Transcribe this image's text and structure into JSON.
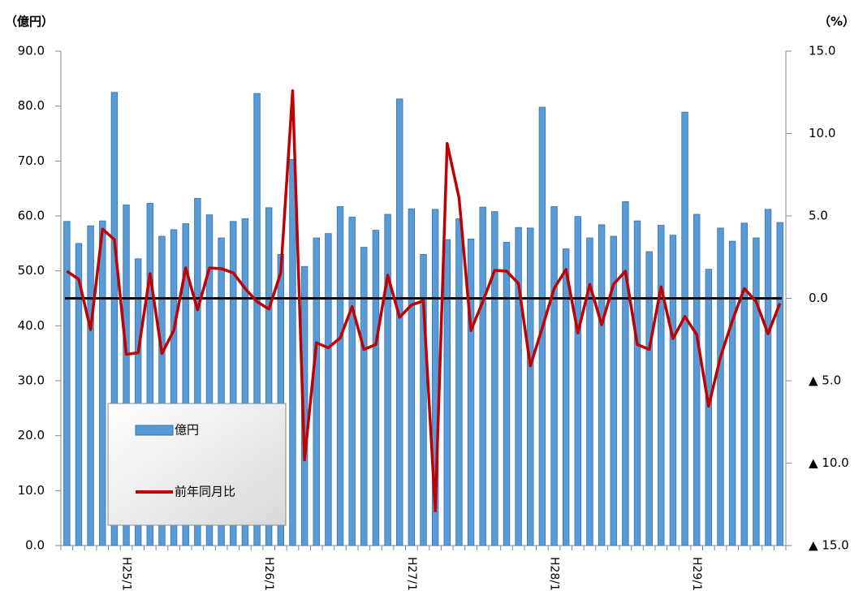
{
  "chart_data": {
    "type": "bar+line",
    "y_label": "（億円）",
    "y2_label": "（%）",
    "categories": [
      null,
      null,
      null,
      null,
      null,
      "H25/1",
      null,
      null,
      null,
      null,
      null,
      null,
      null,
      null,
      null,
      null,
      null,
      "H26/1",
      null,
      null,
      null,
      null,
      null,
      null,
      null,
      null,
      null,
      null,
      null,
      "H27/1",
      null,
      null,
      null,
      null,
      null,
      null,
      null,
      null,
      null,
      null,
      null,
      "H28/1",
      null,
      null,
      null,
      null,
      null,
      null,
      null,
      null,
      null,
      null,
      null,
      "H29/1",
      null,
      null,
      null,
      null,
      null,
      null,
      null
    ],
    "series": [
      {
        "name": "億円",
        "type": "bar",
        "color": "#5b9bd5",
        "values": [
          59,
          55,
          58.2,
          59.1,
          82.5,
          62,
          52.2,
          62.3,
          56.3,
          57.5,
          58.6,
          63.2,
          60.2,
          56,
          59,
          59.5,
          82.3,
          61.5,
          53,
          70.3,
          50.8,
          56,
          56.8,
          61.7,
          59.8,
          54.3,
          57.4,
          60.3,
          81.3,
          61.3,
          53,
          61.2,
          55.7,
          59.5,
          55.8,
          61.6,
          60.8,
          55.2,
          57.9,
          57.8,
          79.8,
          61.7,
          54,
          59.9,
          56,
          58.4,
          56.3,
          62.6,
          59.1,
          53.5,
          58.3,
          56.5,
          78.9,
          60.3,
          50.3,
          57.8,
          55.4,
          58.7,
          56,
          61.2,
          58.8
        ]
      },
      {
        "name": "前年同月比",
        "type": "line",
        "axis": "y2",
        "color": "#c00000",
        "values": [
          1.65,
          1.16,
          -1.9,
          4.2,
          3.57,
          -3.4,
          -3.3,
          1.5,
          -3.35,
          -1.95,
          1.85,
          -0.7,
          1.85,
          1.8,
          1.55,
          0.6,
          -0.2,
          -0.65,
          1.55,
          12.6,
          -9.8,
          -2.7,
          -3.0,
          -2.4,
          -0.5,
          -3.1,
          -2.8,
          1.4,
          -1.15,
          -0.4,
          -0.15,
          -12.9,
          9.4,
          6.1,
          -1.95,
          -0.2,
          1.7,
          1.65,
          0.9,
          -4.1,
          -1.8,
          0.6,
          1.75,
          -2.1,
          0.85,
          -1.6,
          0.85,
          1.65,
          -2.8,
          -3.1,
          0.7,
          -2.45,
          -1.1,
          -2.2,
          -6.55,
          -3.55,
          -1.35,
          0.6,
          -0.2,
          -2.15,
          -0.3
        ]
      }
    ],
    "ylim": [
      0,
      90
    ],
    "yticks": [
      {
        "value": 0,
        "label": "0.0"
      },
      {
        "value": 10,
        "label": "10.0"
      },
      {
        "value": 20,
        "label": "20.0"
      },
      {
        "value": 30,
        "label": "30.0"
      },
      {
        "value": 40,
        "label": "40.0"
      },
      {
        "value": 50,
        "label": "50.0"
      },
      {
        "value": 60,
        "label": "60.0"
      },
      {
        "value": 70,
        "label": "70.0"
      },
      {
        "value": 80,
        "label": "80.0"
      },
      {
        "value": 90,
        "label": "90.0"
      }
    ],
    "y2lim": [
      -15,
      15
    ],
    "y2ticks": [
      {
        "value": -15,
        "label": "▲ 15.0"
      },
      {
        "value": -10,
        "label": "▲ 10.0"
      },
      {
        "value": -5,
        "label": "▲ 5.0"
      },
      {
        "value": 0,
        "label": "0.0"
      },
      {
        "value": 5,
        "label": "5.0"
      },
      {
        "value": 10,
        "label": "10.0"
      },
      {
        "value": 15,
        "label": "15.0"
      }
    ],
    "zero_line_color": "#000000",
    "legend": "lower-left"
  }
}
